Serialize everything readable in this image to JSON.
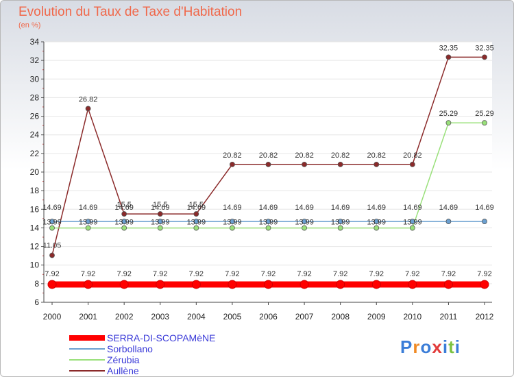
{
  "header": {
    "title": "Evolution du Taux de Taxe d'Habitation",
    "subtitle": "(en %)"
  },
  "logo": {
    "text": "Proxiti",
    "letters": [
      "P",
      "r",
      "o",
      "x",
      "i",
      "t",
      "i"
    ],
    "colors": [
      "#3b7dd8",
      "#f08a24",
      "#3b7dd8",
      "#e23b3b",
      "#3b7dd8",
      "#7cc242",
      "#3b7dd8"
    ]
  },
  "chart_data": {
    "type": "line",
    "title": "Evolution du Taux de Taxe d'Habitation",
    "ylabel": "(en %)",
    "xlabel": "",
    "ylim": [
      6,
      34
    ],
    "yticks": [
      6,
      8,
      10,
      12,
      14,
      16,
      18,
      20,
      22,
      24,
      26,
      28,
      30,
      32,
      34
    ],
    "x": [
      "2000",
      "2001",
      "2002",
      "2003",
      "2004",
      "2005",
      "2006",
      "2007",
      "2008",
      "2009",
      "2010",
      "2011",
      "2012"
    ],
    "series": [
      {
        "name": "SERRA-DI-SCOPAMèNE",
        "color": "#ff0000",
        "width": 9,
        "marker": 6,
        "values": [
          7.92,
          7.92,
          7.92,
          7.92,
          7.92,
          7.92,
          7.92,
          7.92,
          7.92,
          7.92,
          7.92,
          7.92,
          7.92
        ],
        "labels": [
          "7.92",
          "7.92",
          "7.92",
          "7.92",
          "7.92",
          "7.92",
          "7.92",
          "7.92",
          "7.92",
          "7.92",
          "7.92",
          "7.92",
          "7.92"
        ]
      },
      {
        "name": "Sorbollano",
        "color": "#6a9fd0",
        "width": 1.5,
        "marker": 3.5,
        "values": [
          14.69,
          14.69,
          14.69,
          14.69,
          14.69,
          14.69,
          14.69,
          14.69,
          14.69,
          14.69,
          14.69,
          14.69,
          14.69
        ],
        "labels": [
          "14.69",
          "14.69",
          "14.69",
          "14.69",
          "14.69",
          "14.69",
          "14.69",
          "14.69",
          "14.69",
          "14.69",
          "14.69",
          "14.69",
          "14.69"
        ]
      },
      {
        "name": "Zérubia",
        "color": "#99e07a",
        "width": 1.5,
        "marker": 3.5,
        "values": [
          13.99,
          13.99,
          13.99,
          13.99,
          13.99,
          13.99,
          13.99,
          13.99,
          13.99,
          13.99,
          13.99,
          25.29,
          25.29
        ],
        "labels": [
          "13.99",
          "13.99",
          "13.99",
          "13.99",
          "13.99",
          "13.99",
          "13.99",
          "13.99",
          "13.99",
          "13.99",
          "13.99",
          "25.29",
          "25.29"
        ]
      },
      {
        "name": "Aullène",
        "color": "#8b2a2a",
        "width": 1.5,
        "marker": 3.5,
        "values": [
          11.05,
          26.82,
          15.5,
          15.5,
          15.5,
          20.82,
          20.82,
          20.82,
          20.82,
          20.82,
          20.82,
          32.35,
          32.35
        ],
        "labels": [
          "11.05",
          "26.82",
          "15.5",
          "15.5",
          "15.5",
          "20.82",
          "20.82",
          "20.82",
          "20.82",
          "20.82",
          "20.82",
          "32.35",
          "32.35"
        ]
      }
    ],
    "legend_position": "bottom-left",
    "legend": [
      "SERRA-DI-SCOPAMèNE",
      "Sorbollano",
      "Zérubia",
      "Aullène"
    ]
  }
}
